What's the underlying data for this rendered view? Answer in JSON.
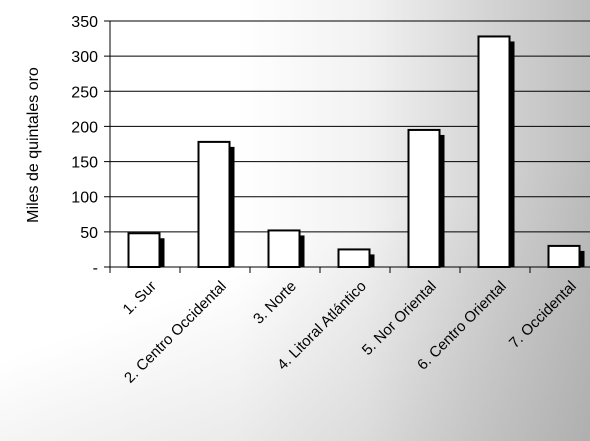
{
  "chart_data": {
    "type": "bar",
    "title": "",
    "ylabel": "Miles de quintales oro",
    "xlabel": "",
    "categories": [
      "1. Sur",
      "2. Centro Occidental",
      "3. Norte",
      "4. Litoral Atlántico",
      "5. Nor Oriental",
      "6. Centro Oriental",
      "7. Occidental"
    ],
    "values": [
      48,
      178,
      52,
      25,
      195,
      328,
      30
    ],
    "ylim": [
      0,
      350
    ],
    "yticks": [
      0,
      50,
      100,
      150,
      200,
      250,
      300,
      350
    ],
    "ytick_labels": [
      "-",
      "50",
      "100",
      "150",
      "200",
      "250",
      "300",
      "350"
    ],
    "grid": true,
    "colors": {
      "bar_fill": "#ffffff",
      "bar_stroke": "#000000",
      "bar_shadow": "#000000",
      "grid": "#000000"
    }
  }
}
